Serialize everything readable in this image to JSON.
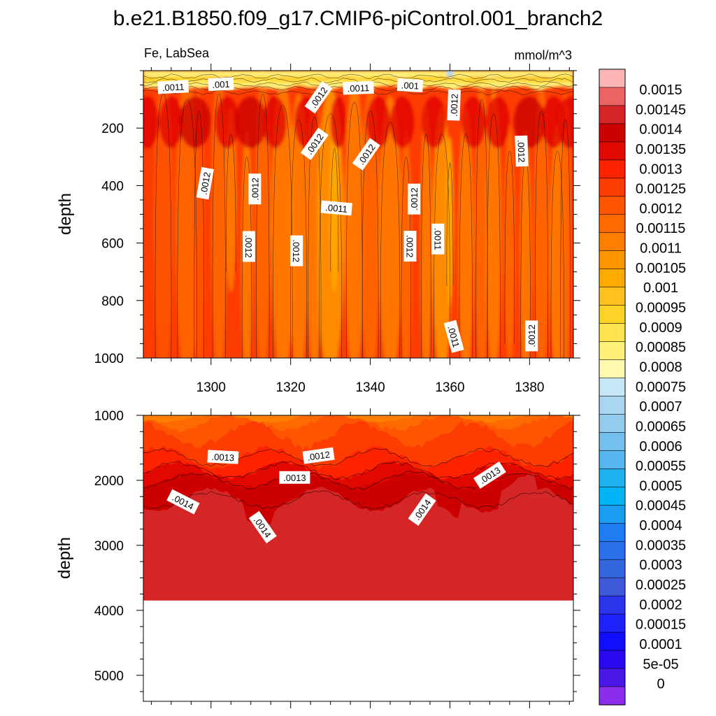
{
  "title": "b.e21.B1850.f09_g17.CMIP6-piControl.001_branch2",
  "subtitle_left": "Fe, LabSea",
  "subtitle_right": "mmol/m^3",
  "chart_data": [
    {
      "type": "heatmap",
      "panel": "upper",
      "variable": "Fe",
      "region": "LabSea",
      "units": "mmol/m^3",
      "xlabel": "",
      "ylabel": "depth",
      "xlim": [
        1283,
        1391
      ],
      "ylim": [
        1000,
        0
      ],
      "xticks": [
        1300,
        1320,
        1340,
        1360,
        1380
      ],
      "yticks": [
        200,
        400,
        600,
        800,
        1000
      ],
      "contour_labels": [
        {
          "text": ".0011",
          "x": 1290.5,
          "y": 57,
          "angle": -3
        },
        {
          "text": ".001",
          "x": 1302.5,
          "y": 47,
          "angle": -3
        },
        {
          "text": ".0012",
          "x": 1327,
          "y": 93,
          "angle": -55
        },
        {
          "text": ".0011",
          "x": 1337,
          "y": 60,
          "angle": -2
        },
        {
          "text": ".001",
          "x": 1350,
          "y": 51,
          "angle": 3
        },
        {
          "text": ".0012",
          "x": 1361,
          "y": 120,
          "angle": -88
        },
        {
          "text": ".0012",
          "x": 1326,
          "y": 255,
          "angle": -55
        },
        {
          "text": ".0012",
          "x": 1339,
          "y": 291,
          "angle": -55
        },
        {
          "text": ".0012",
          "x": 1378,
          "y": 280,
          "angle": 88
        },
        {
          "text": ".0012",
          "x": 1298.5,
          "y": 392,
          "angle": -80
        },
        {
          "text": ".0012",
          "x": 1311,
          "y": 412,
          "angle": -90
        },
        {
          "text": ".0011",
          "x": 1331.5,
          "y": 478,
          "angle": 5
        },
        {
          "text": ".0012",
          "x": 1351,
          "y": 447,
          "angle": -90
        },
        {
          "text": ".0012",
          "x": 1309.5,
          "y": 612,
          "angle": 90
        },
        {
          "text": ".0012",
          "x": 1321.5,
          "y": 627,
          "angle": 90
        },
        {
          "text": ".0012",
          "x": 1350,
          "y": 611,
          "angle": 90
        },
        {
          "text": ".0011",
          "x": 1357,
          "y": 586,
          "angle": 90
        },
        {
          "text": ".0011",
          "x": 1361,
          "y": 925,
          "angle": 75
        },
        {
          "text": ".0012",
          "x": 1380.5,
          "y": 923,
          "angle": -90
        }
      ]
    },
    {
      "type": "heatmap",
      "panel": "lower",
      "variable": "Fe",
      "region": "LabSea",
      "units": "mmol/m^3",
      "xlabel": "",
      "ylabel": "depth",
      "xlim": [
        1283,
        1391
      ],
      "ylim": [
        5400,
        1000
      ],
      "xticks": [
        1300,
        1320,
        1340,
        1360,
        1380
      ],
      "yticks": [
        1000,
        2000,
        3000,
        4000,
        5000
      ],
      "data_bottom_depth": 3850,
      "contour_labels": [
        {
          "text": ".0013",
          "x": 1303,
          "y": 1640,
          "angle": 3
        },
        {
          "text": ".0012",
          "x": 1327,
          "y": 1620,
          "angle": -8
        },
        {
          "text": ".0013",
          "x": 1321,
          "y": 1955,
          "angle": 0
        },
        {
          "text": ".0014",
          "x": 1293,
          "y": 2330,
          "angle": 27
        },
        {
          "text": ".0014",
          "x": 1313,
          "y": 2720,
          "angle": 55
        },
        {
          "text": ".0014",
          "x": 1353,
          "y": 2450,
          "angle": -55
        },
        {
          "text": ".0013",
          "x": 1370,
          "y": 1920,
          "angle": -33
        }
      ]
    }
  ],
  "colorbar": {
    "labels": [
      "0.0015",
      "0.00145",
      "0.0014",
      "0.00135",
      "0.0013",
      "0.00125",
      "0.0012",
      "0.00115",
      "0.0011",
      "0.00105",
      "0.001",
      "0.00095",
      "0.0009",
      "0.00085",
      "0.0008",
      "0.00075",
      "0.0007",
      "0.00065",
      "0.0006",
      "0.00055",
      "0.0005",
      "0.00045",
      "0.0004",
      "0.00035",
      "0.0003",
      "0.00025",
      "0.0002",
      "0.00015",
      "0.0001",
      "5e-05",
      "0"
    ],
    "colors": [
      "#fbb5b5",
      "#ea6464",
      "#d42626",
      "#cd0000",
      "#e10800",
      "#fd2200",
      "#fc3c00",
      "#ff5500",
      "#ff6a00",
      "#ff7f00",
      "#ff9800",
      "#ffaa00",
      "#ffc020",
      "#ffd227",
      "#ffe350",
      "#fff07a",
      "#fffaaf",
      "#c7e6f6",
      "#abd6f1",
      "#94ccee",
      "#73bfed",
      "#57b6ef",
      "#1fb0f0",
      "#00b4f5",
      "#1c9cf0",
      "#1f7df3",
      "#2a71e9",
      "#3466dd",
      "#3e5ad9",
      "#2a35ec",
      "#1d22fb",
      "#0f0ffc",
      "#2a08f2",
      "#4a18e6",
      "#8c2deb"
    ]
  }
}
